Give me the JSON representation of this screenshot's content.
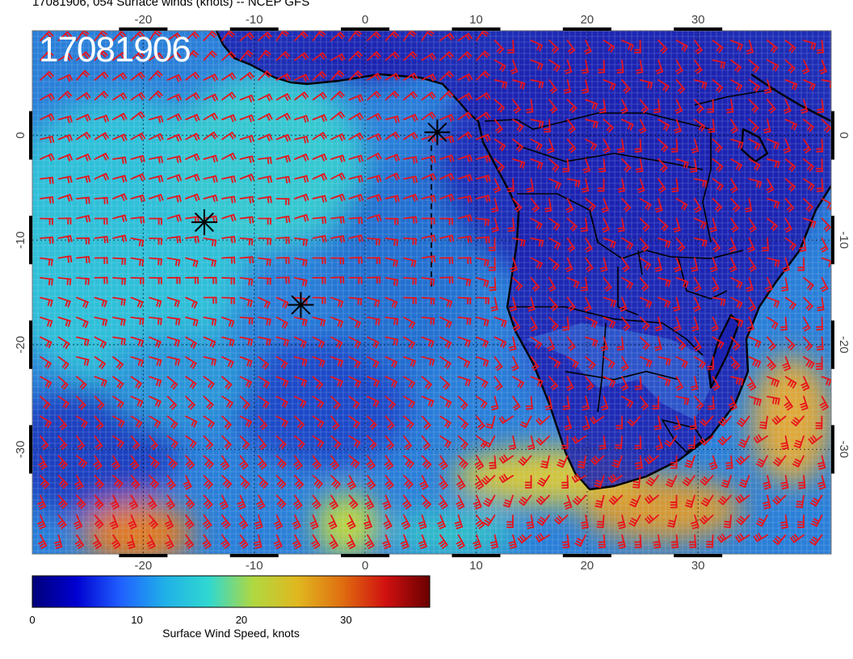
{
  "header": {
    "title": "17081906, 054 Surface winds (knots) -- NCEP GFS",
    "stamp": "17081906"
  },
  "map": {
    "lon_range": [
      -30,
      42
    ],
    "lat_range": [
      -40,
      10
    ],
    "lon_ticks": [
      "-20",
      "-10",
      "0",
      "10",
      "20",
      "30"
    ],
    "lon_tick_values": [
      -20,
      -10,
      0,
      10,
      20,
      30
    ],
    "lat_ticks": [
      "0",
      "-10",
      "-20",
      "-30"
    ],
    "lat_tick_values": [
      0,
      -10,
      -20,
      -30
    ],
    "grid": true,
    "colors": {
      "barb": "#e8141c",
      "coast": "#000000",
      "ocean_low": "#1e3cc8",
      "ocean_mid": "#2a9ad8",
      "ocean_cyan": "#28c8d0",
      "land": "#1c22b0",
      "high_wind": "#e0b020"
    },
    "storm_markers": [
      {
        "lon": 6.5,
        "lat": 0.3
      },
      {
        "lon": -14.5,
        "lat": -8.3
      },
      {
        "lon": -5.8,
        "lat": -16.2
      }
    ]
  },
  "colorbar": {
    "label": "Surface Wind Speed, knots",
    "ticks": [
      "0",
      "10",
      "20",
      "30"
    ],
    "tick_values": [
      0,
      10,
      20,
      30
    ],
    "range": [
      0,
      38
    ],
    "stops": [
      "#00007a",
      "#0000d0",
      "#2060ff",
      "#20b0e8",
      "#30d8d0",
      "#b0d840",
      "#e0b820",
      "#e07010",
      "#d01010",
      "#6a0000"
    ]
  }
}
